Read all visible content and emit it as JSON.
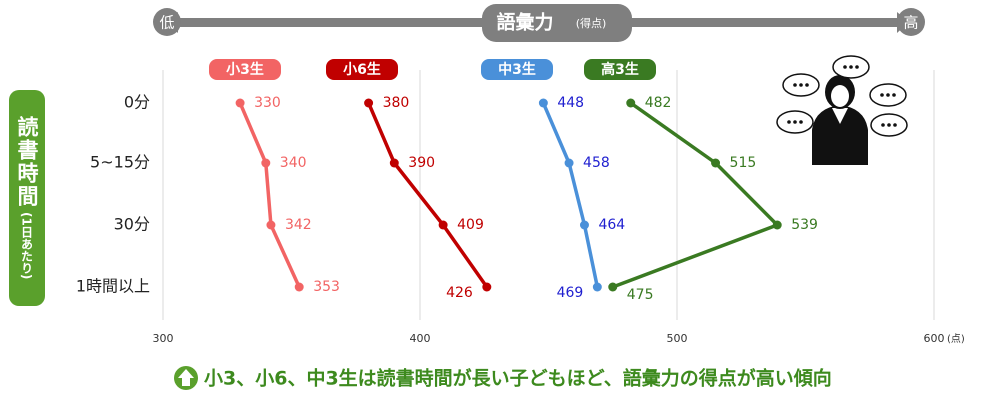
{
  "chart_data": {
    "type": "line",
    "orientation": "horizontal",
    "scale_low_label": "低",
    "scale_high_label": "高",
    "x_axis_title": "語彙力",
    "x_axis_unit_note": "(得点)",
    "y_axis_title": "読書時間",
    "y_axis_subtitle": "(1日あたり)",
    "categories": [
      "0分",
      "5~15分",
      "30分",
      "1時間以上"
    ],
    "xlim": [
      300,
      600
    ],
    "xticks": [
      300,
      400,
      500,
      600
    ],
    "x_tick_unit": "(点)",
    "grid": true,
    "series": [
      {
        "name": "小3生",
        "color": "#f26464",
        "values": [
          330,
          340,
          342,
          353
        ]
      },
      {
        "name": "小6生",
        "color": "#c00000",
        "values": [
          380,
          390,
          409,
          426
        ]
      },
      {
        "name": "中3生",
        "color": "#4a90d9",
        "label_color": "#2020d0",
        "values": [
          448,
          458,
          464,
          469
        ]
      },
      {
        "name": "高3生",
        "color": "#3a7a22",
        "values": [
          482,
          515,
          539,
          475
        ]
      }
    ],
    "footnote": "小3、小6、中3生は読書時間が長い子どもほど、語彙力の得点が高い傾向"
  }
}
